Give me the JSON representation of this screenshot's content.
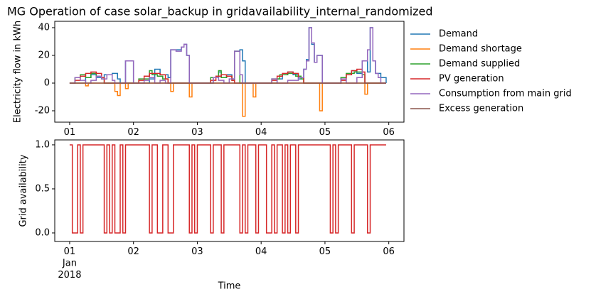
{
  "chart_data": [
    {
      "type": "line",
      "drawstyle": "steps-post",
      "title": "MG Operation of case solar_backup in gridavailability_internal_randomized",
      "ylabel": "Electricity flow in kWh",
      "xlim": [
        -5.6,
        125.7
      ],
      "ylim": [
        -28.2,
        44.6
      ],
      "xticks": [
        {
          "value": 0,
          "label": "01"
        },
        {
          "value": 24,
          "label": "02"
        },
        {
          "value": 48,
          "label": "03"
        },
        {
          "value": 72,
          "label": "04"
        },
        {
          "value": 96,
          "label": "05"
        },
        {
          "value": 120,
          "label": "06"
        }
      ],
      "yticks": [
        -20,
        0,
        20,
        40
      ],
      "legend": "outside right",
      "series": [
        {
          "name": "Demand",
          "color": "#1f77b4",
          "x": [
            0,
            6,
            8,
            10,
            13,
            16,
            18,
            19,
            21,
            24,
            30,
            32,
            34,
            37,
            38,
            40,
            42,
            43,
            44,
            45,
            54,
            56,
            57,
            59,
            61,
            62,
            64,
            65,
            66,
            78,
            80,
            82,
            84,
            86,
            88,
            89,
            90,
            91,
            92,
            93,
            95,
            102,
            104,
            106,
            108,
            110,
            112,
            113,
            114,
            115,
            117,
            119
          ],
          "values": [
            0,
            4,
            6,
            4,
            6,
            7,
            3,
            0,
            16,
            0,
            3,
            10,
            6,
            4,
            24,
            24,
            26,
            28,
            20,
            0,
            4,
            8,
            4,
            6,
            3,
            23,
            24,
            16,
            0,
            3,
            6,
            8,
            6,
            3,
            10,
            17,
            40,
            28,
            15,
            20,
            0,
            4,
            6,
            9,
            7,
            16,
            8,
            40,
            16,
            7,
            4,
            0
          ]
        },
        {
          "name": "Demand shortage",
          "color": "#ff7f0e",
          "x": [
            0,
            6,
            7,
            17,
            18,
            19,
            21,
            22,
            38,
            39,
            45,
            46,
            65,
            66,
            69,
            70,
            94,
            95,
            111,
            112,
            119
          ],
          "values": [
            0,
            -2,
            0,
            -6,
            -9,
            0,
            -4,
            0,
            -6,
            0,
            -10,
            0,
            -24,
            0,
            -10,
            0,
            -20,
            0,
            -8,
            0,
            0
          ]
        },
        {
          "name": "Demand supplied",
          "color": "#2ca02c",
          "x": [
            0,
            2,
            4,
            6,
            8,
            10,
            12,
            13,
            26,
            30,
            31,
            33,
            35,
            37,
            53,
            56,
            57,
            59,
            61,
            62,
            64,
            76,
            79,
            82,
            85,
            87,
            88,
            102,
            104,
            107,
            110,
            111,
            119
          ],
          "values": [
            0,
            4,
            6,
            4,
            7,
            5,
            3,
            0,
            3,
            9,
            6,
            5,
            3,
            0,
            4,
            9,
            4,
            5,
            2,
            23,
            0,
            3,
            6,
            7,
            5,
            3,
            0,
            4,
            7,
            8,
            6,
            0,
            0
          ]
        },
        {
          "name": "PV generation",
          "color": "#d62728",
          "x": [
            0,
            2,
            4,
            6,
            8,
            10,
            12,
            13,
            26,
            28,
            30,
            32,
            34,
            36,
            37,
            53,
            55,
            57,
            59,
            61,
            62,
            76,
            78,
            80,
            82,
            84,
            86,
            88,
            102,
            104,
            106,
            108,
            110,
            111,
            119
          ],
          "values": [
            0,
            2,
            5,
            7,
            8,
            7,
            4,
            0,
            2,
            5,
            7,
            7,
            6,
            3,
            0,
            2,
            5,
            6,
            5,
            2,
            0,
            2,
            5,
            7,
            8,
            7,
            4,
            0,
            2,
            6,
            9,
            10,
            8,
            0,
            0
          ]
        },
        {
          "name": "Consumption from main grid",
          "color": "#9467bd",
          "x": [
            0,
            2,
            4,
            6,
            8,
            10,
            12,
            14,
            16,
            17,
            21,
            24,
            28,
            30,
            32,
            34,
            36,
            38,
            40,
            42,
            43,
            44,
            45,
            54,
            56,
            58,
            60,
            62,
            64,
            65,
            76,
            78,
            82,
            86,
            88,
            89,
            90,
            91,
            92,
            93,
            95,
            102,
            104,
            108,
            110,
            112,
            113,
            114,
            115,
            116,
            117,
            119
          ],
          "values": [
            0,
            4,
            2,
            0,
            2,
            5,
            3,
            6,
            2,
            0,
            16,
            0,
            2,
            4,
            0,
            2,
            0,
            24,
            23,
            26,
            28,
            20,
            0,
            4,
            2,
            0,
            3,
            23,
            6,
            0,
            3,
            0,
            2,
            4,
            10,
            16,
            40,
            29,
            15,
            20,
            0,
            3,
            0,
            4,
            16,
            24,
            40,
            16,
            7,
            4,
            0,
            0
          ]
        },
        {
          "name": "Excess generation",
          "color": "#8c564b",
          "x": [
            0,
            119
          ],
          "values": [
            0,
            0
          ]
        }
      ]
    },
    {
      "type": "line",
      "drawstyle": "steps-post",
      "xlabel": "Time",
      "ylabel": "Grid availability",
      "xlim": [
        -5.6,
        125.7
      ],
      "ylim": [
        -0.097,
        1.056
      ],
      "xticks": [
        {
          "value": 0,
          "label": "01\nJan\n2018"
        },
        {
          "value": 24,
          "label": "02"
        },
        {
          "value": 48,
          "label": "03"
        },
        {
          "value": 72,
          "label": "04"
        },
        {
          "value": 96,
          "label": "05"
        },
        {
          "value": 120,
          "label": "06"
        }
      ],
      "yticks": [
        {
          "value": 0,
          "label": "0.0"
        },
        {
          "value": 0.5,
          "label": "0.5"
        },
        {
          "value": 1,
          "label": "1.0"
        }
      ],
      "series": [
        {
          "color": "#d62728",
          "x": [
            0,
            1,
            3,
            4,
            5,
            13,
            14,
            15,
            16,
            17,
            19,
            20,
            21,
            30,
            31,
            33,
            35,
            37,
            39,
            45,
            46,
            47,
            48,
            53,
            54,
            57,
            58,
            64,
            65,
            66,
            67,
            70,
            71,
            74,
            76,
            77,
            78,
            80,
            81,
            82,
            83,
            85,
            86,
            98,
            99,
            100,
            101,
            106,
            107,
            112,
            113,
            119
          ],
          "values": [
            1,
            0,
            1,
            0,
            1,
            0,
            1,
            0,
            1,
            0,
            1,
            0,
            1,
            0,
            1,
            0,
            1,
            0,
            1,
            0,
            1,
            0,
            1,
            0,
            1,
            0,
            1,
            0,
            1,
            0,
            1,
            0,
            1,
            0,
            1,
            0,
            1,
            0,
            1,
            0,
            1,
            0,
            1,
            0,
            1,
            0,
            1,
            0,
            1,
            0,
            1,
            1
          ]
        }
      ]
    }
  ]
}
